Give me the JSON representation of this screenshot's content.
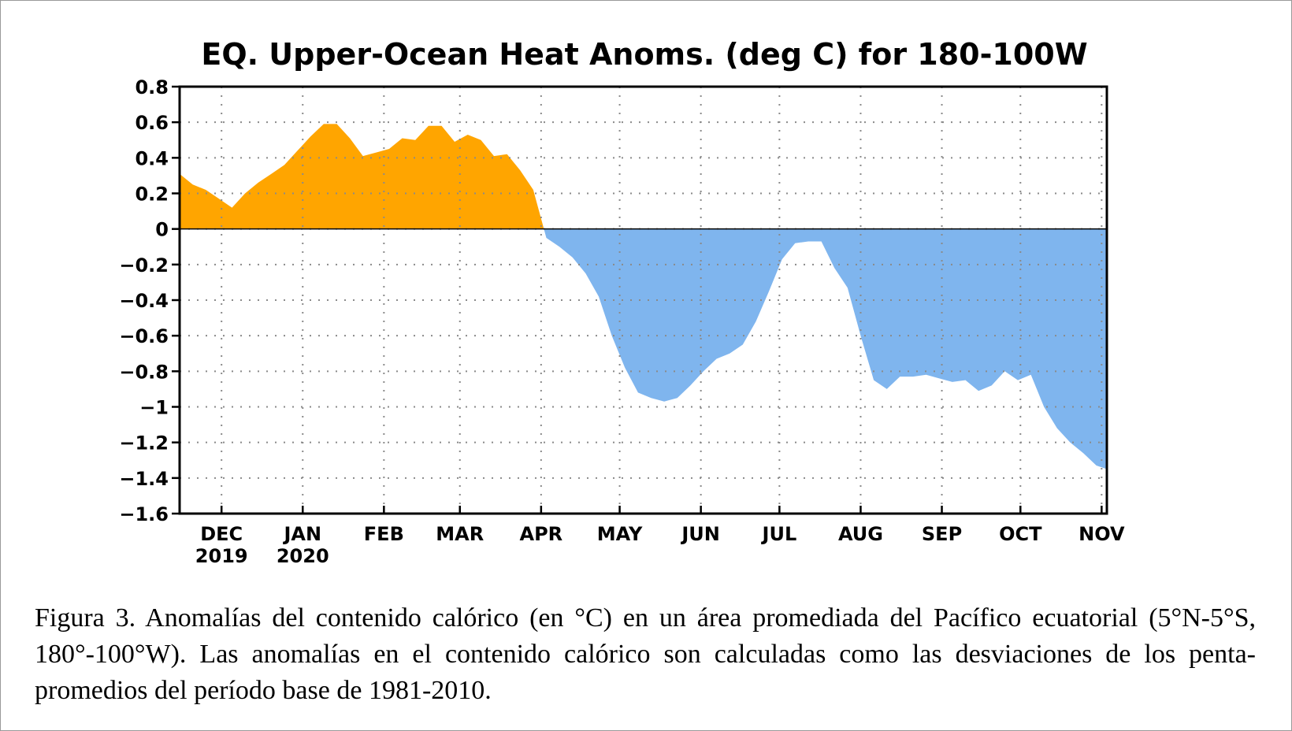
{
  "figure": {
    "caption": "Figura 3. Anomalías del contenido calórico (en °C) en un área promediada del Pacífico ecuatorial (5°N-5°S, 180°-100°W). Las anomalías en el contenido calórico son calculadas como las desviaciones de los penta-promedios del período base de 1981-2010."
  },
  "chart_data": {
    "type": "area",
    "title": "EQ. Upper-Ocean Heat Anoms. (deg C) for 180-100W",
    "xlabel": "",
    "ylabel": "",
    "ylim": [
      -1.6,
      0.8
    ],
    "yticks": [
      0.8,
      0.6,
      0.4,
      0.2,
      0,
      -0.2,
      -0.4,
      -0.6,
      -0.8,
      -1,
      -1.2,
      -1.4,
      -1.6
    ],
    "ytick_labels": [
      "0.8",
      "0.6",
      "0.4",
      "0.2",
      "0",
      "−0.2",
      "−0.4",
      "−0.6",
      "−0.8",
      "−1",
      "−1.2",
      "−1.4",
      "−1.6"
    ],
    "xlim": [
      "2019-11-15",
      "2020-11-03"
    ],
    "xticks": [
      {
        "date": "2019-12-01",
        "label": "DEC",
        "sublabel": "2019"
      },
      {
        "date": "2020-01-01",
        "label": "JAN",
        "sublabel": "2020"
      },
      {
        "date": "2020-02-01",
        "label": "FEB",
        "sublabel": ""
      },
      {
        "date": "2020-03-01",
        "label": "MAR",
        "sublabel": ""
      },
      {
        "date": "2020-04-01",
        "label": "APR",
        "sublabel": ""
      },
      {
        "date": "2020-05-01",
        "label": "MAY",
        "sublabel": ""
      },
      {
        "date": "2020-06-01",
        "label": "JUN",
        "sublabel": ""
      },
      {
        "date": "2020-07-01",
        "label": "JUL",
        "sublabel": ""
      },
      {
        "date": "2020-08-01",
        "label": "AUG",
        "sublabel": ""
      },
      {
        "date": "2020-09-01",
        "label": "SEP",
        "sublabel": ""
      },
      {
        "date": "2020-10-01",
        "label": "OCT",
        "sublabel": ""
      },
      {
        "date": "2020-11-01",
        "label": "NOV",
        "sublabel": ""
      }
    ],
    "grid": true,
    "positive_color": "#FFA500",
    "negative_color": "#7FB5EE",
    "x": [
      "2019-11-15",
      "2019-11-20",
      "2019-11-25",
      "2019-11-30",
      "2019-12-05",
      "2019-12-10",
      "2019-12-15",
      "2019-12-20",
      "2019-12-25",
      "2019-12-30",
      "2020-01-04",
      "2020-01-09",
      "2020-01-14",
      "2020-01-19",
      "2020-01-24",
      "2020-01-29",
      "2020-02-03",
      "2020-02-08",
      "2020-02-13",
      "2020-02-18",
      "2020-02-23",
      "2020-02-28",
      "2020-03-04",
      "2020-03-09",
      "2020-03-14",
      "2020-03-19",
      "2020-03-24",
      "2020-03-29",
      "2020-04-03",
      "2020-04-08",
      "2020-04-13",
      "2020-04-18",
      "2020-04-23",
      "2020-04-28",
      "2020-05-03",
      "2020-05-08",
      "2020-05-13",
      "2020-05-18",
      "2020-05-23",
      "2020-05-28",
      "2020-06-02",
      "2020-06-07",
      "2020-06-12",
      "2020-06-17",
      "2020-06-22",
      "2020-06-27",
      "2020-07-02",
      "2020-07-07",
      "2020-07-12",
      "2020-07-17",
      "2020-07-22",
      "2020-07-27",
      "2020-08-01",
      "2020-08-06",
      "2020-08-11",
      "2020-08-16",
      "2020-08-21",
      "2020-08-26",
      "2020-08-31",
      "2020-09-05",
      "2020-09-10",
      "2020-09-15",
      "2020-09-20",
      "2020-09-25",
      "2020-09-30",
      "2020-10-05",
      "2020-10-10",
      "2020-10-15",
      "2020-10-20",
      "2020-10-25",
      "2020-10-30",
      "2020-11-03"
    ],
    "values": [
      0.31,
      0.25,
      0.22,
      0.17,
      0.12,
      0.2,
      0.26,
      0.31,
      0.36,
      0.44,
      0.52,
      0.59,
      0.59,
      0.51,
      0.41,
      0.43,
      0.45,
      0.51,
      0.5,
      0.58,
      0.58,
      0.49,
      0.53,
      0.5,
      0.41,
      0.42,
      0.33,
      0.22,
      -0.05,
      -0.1,
      -0.16,
      -0.25,
      -0.38,
      -0.6,
      -0.78,
      -0.92,
      -0.95,
      -0.97,
      -0.95,
      -0.88,
      -0.8,
      -0.73,
      -0.7,
      -0.65,
      -0.52,
      -0.35,
      -0.17,
      -0.08,
      -0.07,
      -0.07,
      -0.22,
      -0.33,
      -0.6,
      -0.85,
      -0.9,
      -0.83,
      -0.83,
      -0.82,
      -0.84,
      -0.86,
      -0.85,
      -0.91,
      -0.88,
      -0.8,
      -0.85,
      -0.82,
      -1.0,
      -1.12,
      -1.2,
      -1.26,
      -1.33,
      -1.35
    ]
  }
}
